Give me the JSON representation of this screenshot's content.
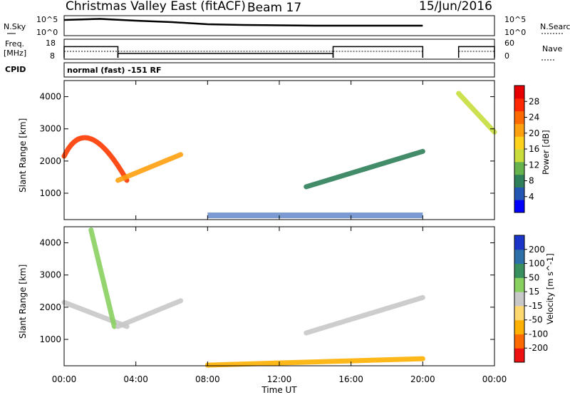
{
  "header": {
    "radar": "Christmas Valley East (fitACF)",
    "beam": "Beam 17",
    "date": "15/Jun/2016"
  },
  "strip_nsky": {
    "left_label": "N.Sky",
    "right_label": "N.Search",
    "left_ticks": [
      "10^5",
      "10^0"
    ],
    "right_ticks": [
      "10^5",
      "10^0"
    ]
  },
  "strip_freq": {
    "left_label_1": "Freq.",
    "left_label_2": "[MHz]",
    "right_label": "Nave",
    "left_ticks": [
      "18",
      "8"
    ],
    "right_ticks": [
      "60",
      "0"
    ]
  },
  "cpid": {
    "label": "CPID",
    "value": "normal (fast) -151 RF"
  },
  "power_panel": {
    "ylabel": "Slant Range [km]",
    "cbar_label": "Power [dB]",
    "cbar_ticks": [
      "4",
      "8",
      "12",
      "16",
      "20",
      "24",
      "28"
    ],
    "cbar_colors": [
      "#0000ff",
      "#2456b4",
      "#2f7f5a",
      "#66b34d",
      "#c8dd3c",
      "#ffd21e",
      "#ffa010",
      "#ff6a00",
      "#ff2800",
      "#e60000"
    ]
  },
  "velocity_panel": {
    "ylabel": "Slant Range [km]",
    "cbar_label": "Velocity [m s^-1]",
    "cbar_ticks": [
      "-200",
      "-100",
      "-50",
      "-15",
      "15",
      "50",
      "100",
      "200"
    ],
    "cbar_colors": [
      "#ee1111",
      "#ff6a00",
      "#ffb000",
      "#ffd870",
      "#c8c8c8",
      "#88d060",
      "#3a8f5f",
      "#2d6fa8",
      "#1a35c8"
    ]
  },
  "xaxis": {
    "label": "Time UT",
    "ticks": [
      "00:00",
      "04:00",
      "08:00",
      "12:00",
      "16:00",
      "20:00",
      "00:00"
    ]
  },
  "chart_data": [
    {
      "type": "line",
      "name": "N.Sky / N.Search",
      "x_hours": [
        0,
        2,
        4,
        6,
        8,
        10,
        12,
        14,
        16,
        18,
        20,
        22,
        24
      ],
      "y_log10": [
        4.2,
        4.5,
        4.0,
        3.6,
        3.0,
        2.8,
        2.7,
        2.6,
        2.6,
        2.6,
        2.6,
        null,
        3.4
      ],
      "gaps": [
        [
          20,
          22
        ]
      ]
    },
    {
      "type": "line",
      "name": "Freq. [MHz]",
      "segments": [
        {
          "start_hour": 0,
          "end_hour": 3,
          "value": 14.5
        },
        {
          "start_hour": 3,
          "end_hour": 15,
          "value": 10.5
        },
        {
          "start_hour": 15,
          "end_hour": 20,
          "value": 14.5
        },
        {
          "start_hour": 22,
          "end_hour": 24,
          "value": 14.5
        }
      ],
      "ylim": [
        8,
        18
      ]
    },
    {
      "type": "heatmap",
      "name": "Power [dB]",
      "xlim_hours": [
        0,
        24
      ],
      "ylim_km": [
        180,
        4500
      ],
      "ytick_km": [
        1000,
        2000,
        3000,
        4000
      ],
      "features": [
        {
          "start_hour": 0.0,
          "end_hour": 3.5,
          "km_start": 2150,
          "km_peak": 3000,
          "km_end": 1400,
          "power_db": 24
        },
        {
          "start_hour": 3.0,
          "end_hour": 6.5,
          "km_start": 1400,
          "km_end": 2200,
          "power_db": 22
        },
        {
          "start_hour": 13.5,
          "end_hour": 20.0,
          "km_start": 1200,
          "km_end": 2300,
          "power_db": 14
        },
        {
          "start_hour": 22.0,
          "end_hour": 24.0,
          "km_start": 4100,
          "km_end": 2900,
          "power_db": 16
        }
      ]
    },
    {
      "type": "heatmap",
      "name": "Velocity [m s^-1]",
      "xlim_hours": [
        0,
        24
      ],
      "ylim_km": [
        180,
        4500
      ],
      "ytick_km": [
        1000,
        2000,
        3000,
        4000
      ],
      "features": [
        {
          "start_hour": 0.0,
          "end_hour": 3.5,
          "km_start": 2150,
          "km_end": 1400,
          "velocity": 0
        },
        {
          "start_hour": 1.5,
          "end_hour": 2.8,
          "km_start": 4400,
          "km_end": 1400,
          "velocity": 40
        },
        {
          "start_hour": 3.0,
          "end_hour": 6.5,
          "km_start": 1400,
          "km_end": 2200,
          "velocity": 0
        },
        {
          "start_hour": 13.5,
          "end_hour": 20.0,
          "km_start": 1200,
          "km_end": 2300,
          "velocity": 0
        },
        {
          "start_hour": 8.0,
          "end_hour": 20.0,
          "km_start": 200,
          "km_end": 400,
          "velocity": -50
        }
      ]
    }
  ]
}
